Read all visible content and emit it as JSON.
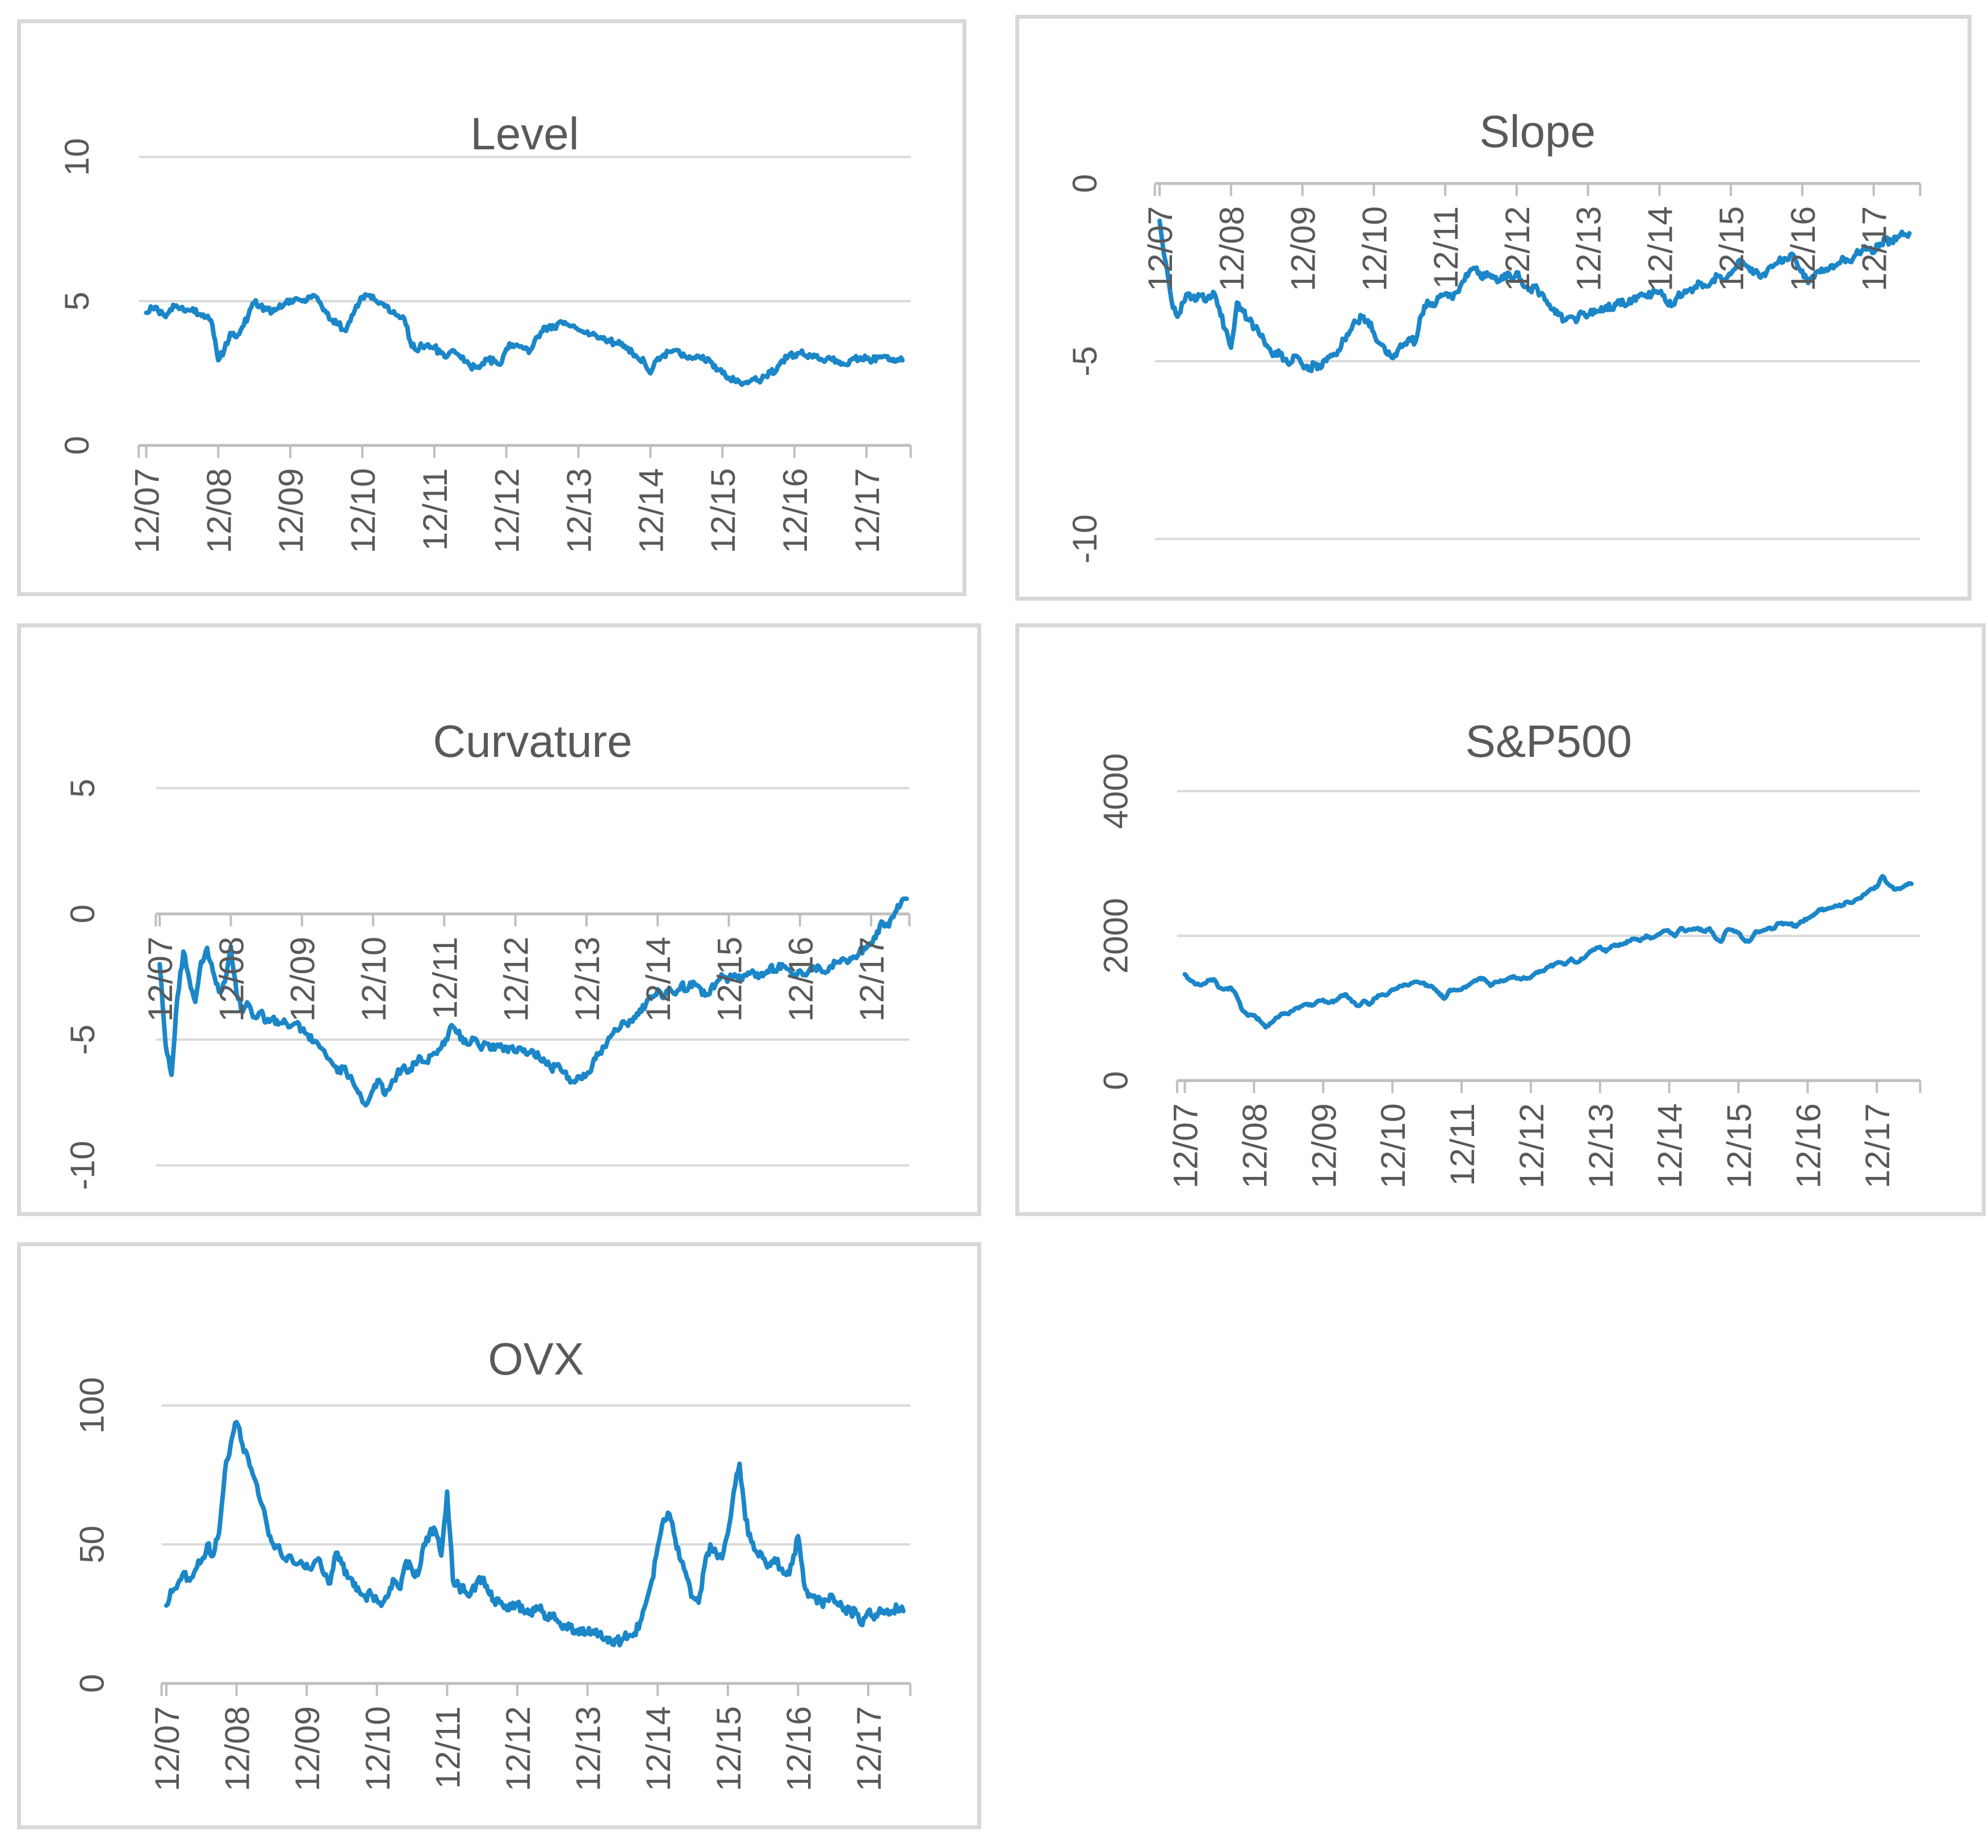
{
  "style": {
    "series_color": "#1B86C8",
    "grid_color": "#D9D9D9",
    "axis_color": "#BFBFBF",
    "label_color": "#595959",
    "title_color": "#595959",
    "panel_border_color": "#D8D8D8",
    "background": "#FFFFFF"
  },
  "chart_data": [
    {
      "id": "level",
      "type": "line",
      "title": "Level",
      "ylim": [
        0,
        10
      ],
      "y_ticks": [
        0,
        5,
        10
      ],
      "grid": true,
      "legend": false,
      "x_frequency": "monthly",
      "x_tick_labels": [
        "12/07",
        "12/08",
        "12/09",
        "12/10",
        "12/11",
        "12/12",
        "12/13",
        "12/14",
        "12/15",
        "12/16",
        "12/17"
      ],
      "values": [
        4.6,
        4.75,
        4.65,
        4.5,
        4.72,
        4.85,
        4.8,
        4.7,
        4.62,
        4.55,
        4.45,
        4.2,
        2.95,
        3.3,
        3.9,
        3.75,
        4.1,
        4.5,
        4.95,
        4.85,
        4.7,
        4.62,
        4.75,
        4.9,
        5.05,
        5.1,
        5.0,
        5.15,
        5.2,
        4.95,
        4.6,
        4.35,
        4.2,
        4.0,
        4.3,
        4.85,
        5.15,
        5.2,
        5.05,
        4.95,
        4.85,
        4.6,
        4.5,
        4.4,
        3.6,
        3.3,
        3.45,
        3.5,
        3.4,
        3.2,
        3.05,
        3.3,
        3.15,
        2.9,
        2.75,
        2.7,
        2.85,
        2.95,
        2.9,
        2.8,
        3.35,
        3.5,
        3.45,
        3.35,
        3.3,
        3.75,
        3.95,
        4.1,
        4.05,
        4.3,
        4.2,
        4.15,
        4.0,
        3.9,
        3.85,
        3.8,
        3.7,
        3.65,
        3.55,
        3.5,
        3.35,
        3.2,
        3.0,
        2.9,
        2.5,
        2.95,
        3.1,
        3.25,
        3.3,
        3.15,
        3.05,
        3.0,
        3.1,
        2.95,
        2.9,
        2.6,
        2.5,
        2.35,
        2.25,
        2.15,
        2.2,
        2.3,
        2.25,
        2.4,
        2.5,
        2.6,
        2.95,
        3.1,
        3.15,
        3.2,
        3.1,
        3.05,
        3.0,
        2.9,
        3.0,
        2.95,
        2.85,
        2.8,
        3.0,
        3.05,
        3.0,
        2.95,
        3.05,
        3.1,
        3.0,
        2.92,
        2.95
      ]
    },
    {
      "id": "slope",
      "type": "line",
      "title": "Slope",
      "ylim": [
        -10,
        0
      ],
      "y_ticks": [
        0,
        -5,
        -10
      ],
      "grid": true,
      "legend": false,
      "x_frequency": "monthly",
      "x_tick_labels": [
        "12/07",
        "12/08",
        "12/09",
        "12/10",
        "12/11",
        "12/12",
        "12/13",
        "12/14",
        "12/15",
        "12/16",
        "12/17"
      ],
      "values": [
        -1.05,
        -2.2,
        -3.3,
        -3.75,
        -3.35,
        -3.1,
        -3.3,
        -3.15,
        -3.25,
        -3.05,
        -3.5,
        -4.1,
        -4.62,
        -3.35,
        -3.6,
        -3.85,
        -4.05,
        -4.3,
        -4.55,
        -4.85,
        -4.7,
        -4.95,
        -5.05,
        -4.85,
        -5.1,
        -5.25,
        -5.1,
        -5.2,
        -5.0,
        -4.85,
        -4.7,
        -4.4,
        -4.15,
        -3.9,
        -3.75,
        -3.85,
        -4.2,
        -4.5,
        -4.75,
        -4.9,
        -4.7,
        -4.55,
        -4.35,
        -4.45,
        -3.7,
        -3.3,
        -3.45,
        -3.2,
        -3.1,
        -3.2,
        -3.05,
        -2.75,
        -2.5,
        -2.4,
        -2.65,
        -2.5,
        -2.6,
        -2.75,
        -2.55,
        -2.65,
        -2.5,
        -2.85,
        -3.0,
        -2.9,
        -3.1,
        -3.3,
        -3.55,
        -3.7,
        -3.85,
        -3.75,
        -3.9,
        -3.65,
        -3.7,
        -3.55,
        -3.6,
        -3.45,
        -3.5,
        -3.3,
        -3.4,
        -3.25,
        -3.3,
        -3.1,
        -3.2,
        -3.0,
        -3.05,
        -3.3,
        -3.45,
        -3.2,
        -3.1,
        -3.0,
        -2.9,
        -2.8,
        -2.9,
        -2.7,
        -2.6,
        -2.7,
        -2.55,
        -2.3,
        -2.2,
        -2.35,
        -2.5,
        -2.65,
        -2.5,
        -2.35,
        -2.2,
        -2.1,
        -2.0,
        -2.2,
        -2.45,
        -2.8,
        -2.65,
        -2.5,
        -2.4,
        -2.3,
        -2.25,
        -2.1,
        -2.2,
        -2.0,
        -1.9,
        -1.85,
        -1.95,
        -1.7,
        -1.6,
        -1.65,
        -1.5,
        -1.45,
        -1.4
      ]
    },
    {
      "id": "curvature",
      "type": "line",
      "title": "Curvature",
      "ylim": [
        -10,
        5
      ],
      "y_ticks": [
        5,
        0,
        -5,
        -10
      ],
      "grid": true,
      "legend": false,
      "x_frequency": "monthly",
      "x_tick_labels": [
        "12/07",
        "12/08",
        "12/09",
        "12/10",
        "12/11",
        "12/12",
        "12/13",
        "12/14",
        "12/15",
        "12/16",
        "12/17"
      ],
      "values": [
        -2.0,
        -5.2,
        -6.4,
        -3.3,
        -1.5,
        -2.6,
        -3.5,
        -1.9,
        -1.35,
        -2.3,
        -3.1,
        -2.7,
        -1.3,
        -3.2,
        -3.9,
        -3.6,
        -4.1,
        -3.9,
        -4.3,
        -4.15,
        -4.4,
        -4.2,
        -4.5,
        -4.35,
        -4.6,
        -4.8,
        -5.1,
        -5.3,
        -5.6,
        -5.9,
        -6.3,
        -6.1,
        -6.5,
        -6.9,
        -7.3,
        -7.55,
        -7.0,
        -6.6,
        -7.2,
        -6.8,
        -6.4,
        -6.1,
        -6.3,
        -5.9,
        -5.7,
        -5.9,
        -5.6,
        -5.4,
        -5.2,
        -4.5,
        -4.7,
        -4.9,
        -5.2,
        -5.0,
        -5.3,
        -5.15,
        -5.4,
        -5.2,
        -5.45,
        -5.3,
        -5.5,
        -5.35,
        -5.6,
        -5.45,
        -5.7,
        -5.9,
        -6.15,
        -6.0,
        -6.3,
        -6.5,
        -6.7,
        -6.55,
        -6.4,
        -6.0,
        -5.6,
        -5.3,
        -4.9,
        -4.6,
        -4.3,
        -4.45,
        -4.1,
        -3.8,
        -3.6,
        -3.3,
        -3.0,
        -3.35,
        -2.95,
        -3.2,
        -2.8,
        -3.05,
        -2.7,
        -2.9,
        -3.25,
        -2.95,
        -2.7,
        -2.5,
        -2.6,
        -2.4,
        -2.65,
        -2.45,
        -2.25,
        -2.55,
        -2.35,
        -2.1,
        -2.3,
        -2.0,
        -2.2,
        -2.4,
        -2.25,
        -2.45,
        -2.25,
        -2.05,
        -2.3,
        -2.1,
        -1.95,
        -1.8,
        -1.95,
        -1.7,
        -1.55,
        -1.4,
        -1.15,
        -0.7,
        -0.35,
        -0.5,
        0.05,
        0.4,
        0.6
      ]
    },
    {
      "id": "sp500",
      "type": "line",
      "title": "S&P500",
      "ylim": [
        0,
        4000
      ],
      "y_ticks": [
        0,
        2000,
        4000
      ],
      "grid": true,
      "legend": false,
      "x_frequency": "monthly",
      "x_tick_labels": [
        "12/07",
        "12/08",
        "12/09",
        "12/10",
        "12/11",
        "12/12",
        "12/13",
        "12/14",
        "12/15",
        "12/16",
        "12/17"
      ],
      "values": [
        1468,
        1379,
        1331,
        1323,
        1386,
        1400,
        1280,
        1267,
        1283,
        1166,
        969,
        896,
        903,
        826,
        735,
        798,
        873,
        919,
        919,
        987,
        1021,
        1057,
        1036,
        1096,
        1115,
        1074,
        1104,
        1169,
        1187,
        1089,
        1031,
        1102,
        1049,
        1141,
        1183,
        1181,
        1258,
        1286,
        1327,
        1326,
        1364,
        1345,
        1321,
        1292,
        1219,
        1131,
        1253,
        1247,
        1258,
        1312,
        1366,
        1408,
        1398,
        1310,
        1362,
        1379,
        1407,
        1441,
        1412,
        1416,
        1426,
        1498,
        1515,
        1569,
        1598,
        1631,
        1606,
        1686,
        1633,
        1682,
        1757,
        1806,
        1848,
        1783,
        1859,
        1872,
        1884,
        1924,
        1960,
        1931,
        2003,
        1972,
        2018,
        2068,
        2059,
        1995,
        2105,
        2068,
        2086,
        2107,
        2063,
        2104,
        1972,
        1920,
        2079,
        2080,
        2044,
        1940,
        1932,
        2060,
        2065,
        2097,
        2099,
        2174,
        2171,
        2168,
        2126,
        2199,
        2239,
        2279,
        2364,
        2363,
        2384,
        2412,
        2423,
        2470,
        2472,
        2519,
        2575,
        2648,
        2674,
        2824,
        2714,
        2641,
        2648,
        2705,
        2718
      ]
    },
    {
      "id": "ovx",
      "type": "line",
      "title": "OVX",
      "ylim": [
        0,
        100
      ],
      "y_ticks": [
        0,
        50,
        100
      ],
      "grid": true,
      "legend": false,
      "x_frequency": "monthly",
      "x_tick_labels": [
        "12/07",
        "12/08",
        "12/09",
        "12/10",
        "12/11",
        "12/12",
        "12/13",
        "12/14",
        "12/15",
        "12/16",
        "12/17"
      ],
      "values": [
        28,
        33,
        36,
        40,
        37,
        41,
        44,
        50,
        46,
        54,
        76,
        86,
        94,
        86,
        81,
        74,
        66,
        59,
        51,
        49,
        45,
        46,
        43,
        44,
        43,
        42,
        45,
        39,
        36,
        47,
        43,
        38,
        35,
        33,
        31,
        32,
        30,
        29,
        32,
        37,
        34,
        44,
        41,
        39,
        50,
        54,
        55,
        46,
        69,
        37,
        35,
        33,
        32,
        36,
        38,
        33,
        30,
        29,
        28,
        27,
        29,
        26,
        25,
        26,
        28,
        24,
        25,
        22,
        21,
        20,
        19,
        18,
        18,
        19,
        18,
        16,
        15.5,
        15,
        16,
        17,
        18,
        22,
        29,
        37,
        49,
        59,
        61,
        52,
        44,
        38,
        31,
        29,
        42,
        50,
        47,
        45,
        54,
        69,
        79,
        59,
        51,
        47,
        45,
        43,
        45,
        41,
        39,
        43,
        53,
        36,
        32,
        31,
        29,
        30,
        31,
        28,
        27,
        26,
        25,
        21,
        26,
        23,
        27,
        26,
        26,
        27,
        26
      ]
    }
  ]
}
